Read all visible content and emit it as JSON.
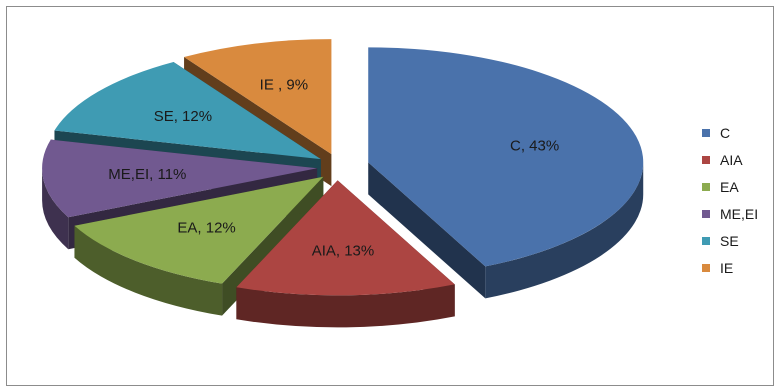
{
  "chart_data": {
    "type": "pie",
    "style": "3d-exploded",
    "categories": [
      "C",
      "AIA",
      "EA",
      "ME,EI",
      "SE",
      "IE"
    ],
    "values": [
      43,
      13,
      12,
      11,
      12,
      9
    ],
    "unit": "%",
    "data_labels": [
      "C, 43%",
      "AIA, 13%",
      "EA, 12%",
      "ME,EI, 11%",
      "SE, 12%",
      "IE , 9%"
    ],
    "colors": [
      "#4a72ab",
      "#ac4542",
      "#8cab4f",
      "#715990",
      "#3f9bb3",
      "#d98a3e"
    ],
    "legend_position": "right",
    "title": ""
  },
  "legend": {
    "items": [
      {
        "label": "C",
        "color": "#4a72ab"
      },
      {
        "label": "AIA",
        "color": "#ac4542"
      },
      {
        "label": "EA",
        "color": "#8cab4f"
      },
      {
        "label": "ME,EI",
        "color": "#715990"
      },
      {
        "label": "SE",
        "color": "#3f9bb3"
      },
      {
        "label": "IE",
        "color": "#d98a3e"
      }
    ]
  }
}
